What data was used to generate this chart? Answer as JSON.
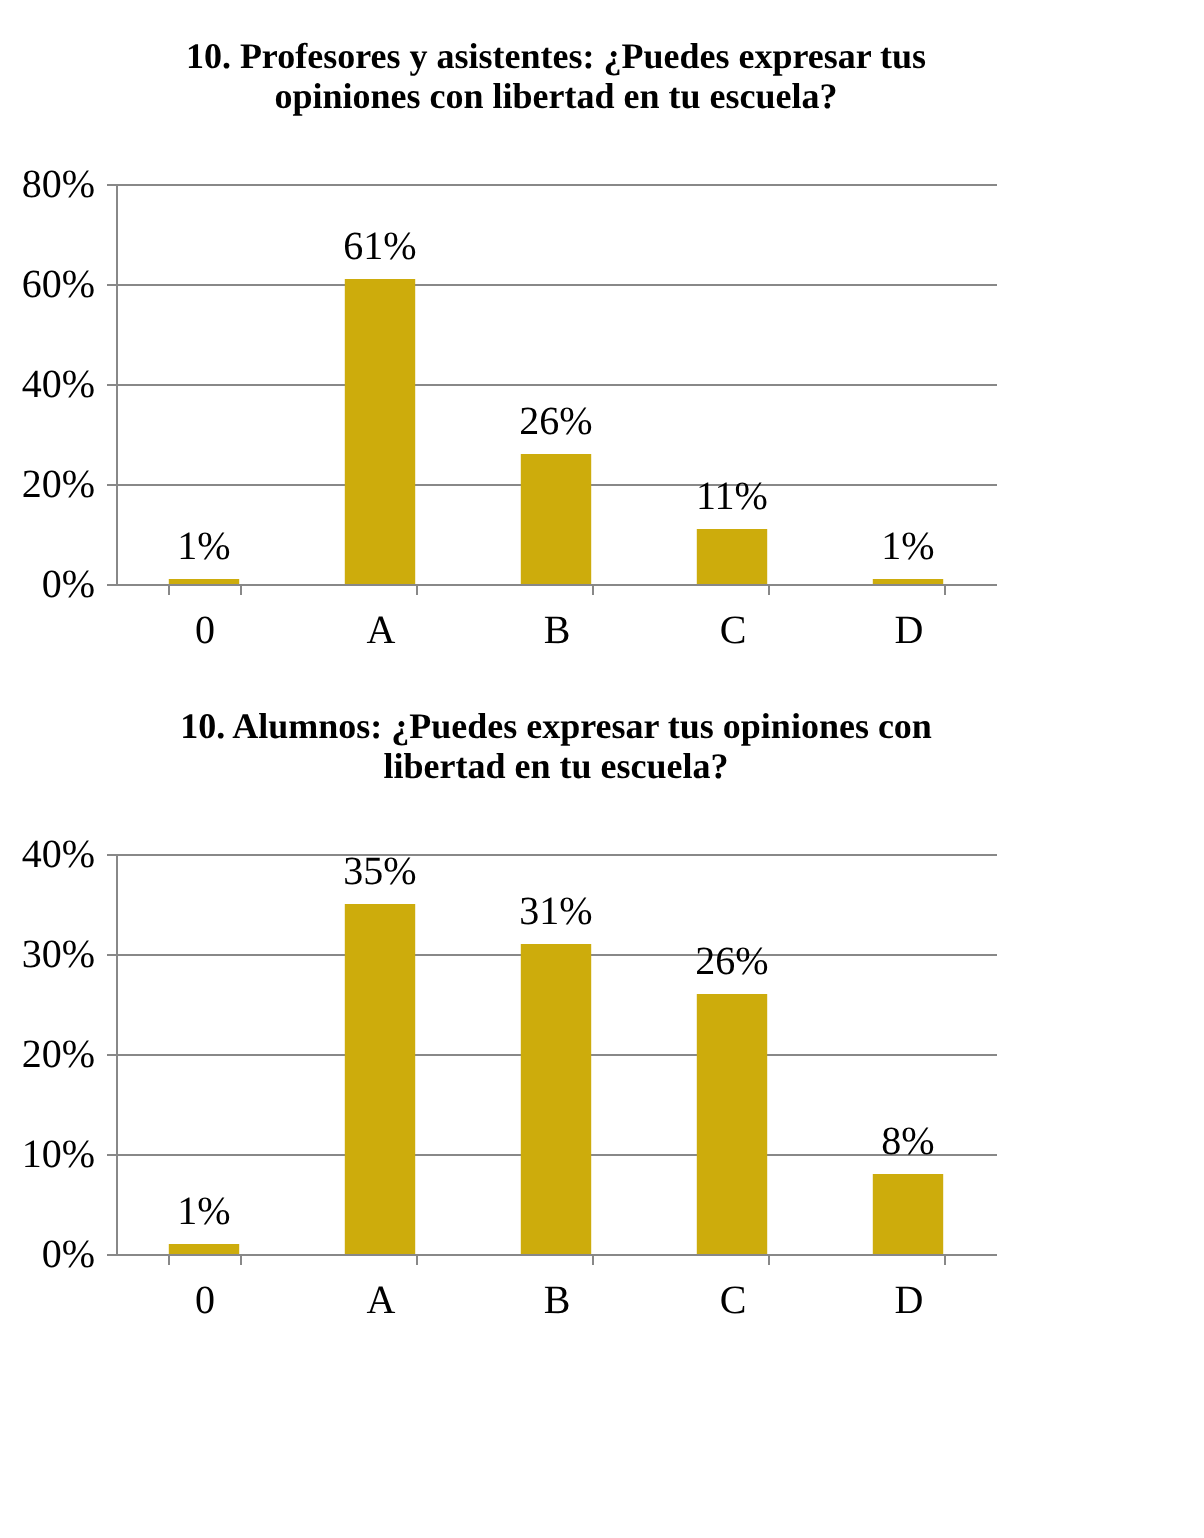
{
  "chart_data": [
    {
      "type": "bar",
      "title": "10. Profesores y asistentes: ¿Puedes expresar tus opiniones con libertad en tu escuela?",
      "categories": [
        "0",
        "A",
        "B",
        "C",
        "D"
      ],
      "values": [
        1,
        61,
        26,
        11,
        1
      ],
      "value_labels": [
        "1%",
        "61%",
        "26%",
        "11%",
        "1%"
      ],
      "color": "#cdac0c",
      "ylim": [
        0,
        80
      ],
      "yticks": [
        {
          "value": 0,
          "label": "0%"
        },
        {
          "value": 20,
          "label": "20%"
        },
        {
          "value": 40,
          "label": "40%"
        },
        {
          "value": 60,
          "label": "60%"
        },
        {
          "value": 80,
          "label": "80%"
        }
      ],
      "grid": "y"
    },
    {
      "type": "bar",
      "title": "10. Alumnos: ¿Puedes expresar tus opiniones con libertad en tu escuela?",
      "categories": [
        "0",
        "A",
        "B",
        "C",
        "D"
      ],
      "values": [
        1,
        35,
        31,
        26,
        8
      ],
      "value_labels": [
        "1%",
        "35%",
        "31%",
        "26%",
        "8%"
      ],
      "color": "#cdac0c",
      "ylim": [
        0,
        40
      ],
      "yticks": [
        {
          "value": 0,
          "label": "0%"
        },
        {
          "value": 10,
          "label": "10%"
        },
        {
          "value": 20,
          "label": "20%"
        },
        {
          "value": 30,
          "label": "30%"
        },
        {
          "value": 40,
          "label": "40%"
        }
      ],
      "grid": "y"
    }
  ]
}
